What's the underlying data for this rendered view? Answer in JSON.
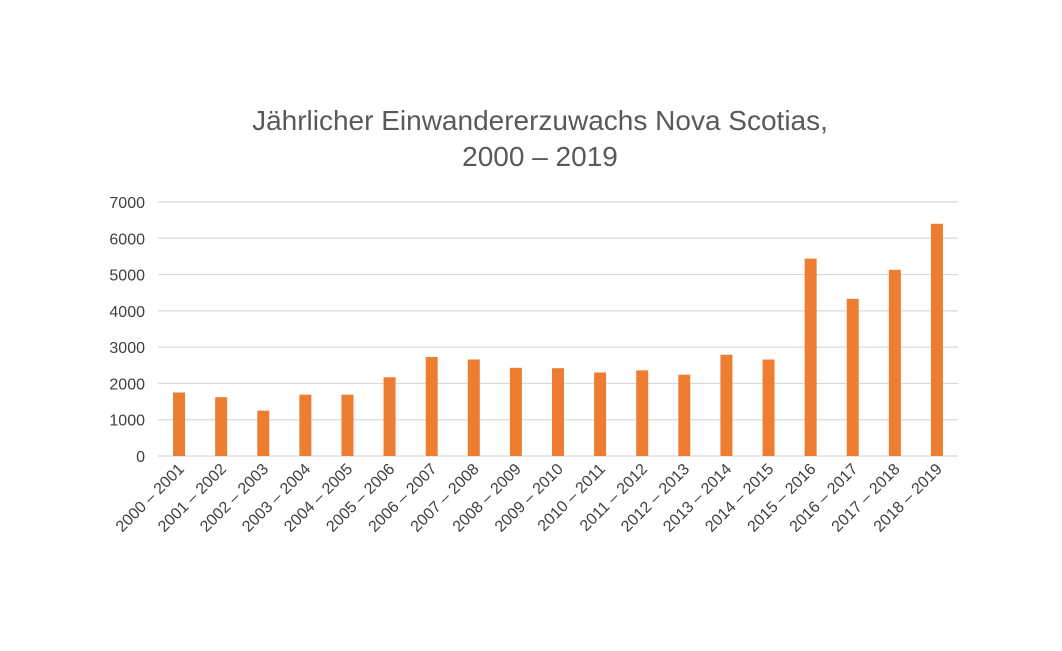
{
  "chart_data": {
    "type": "bar",
    "title_lines": [
      "Jährlicher Einwandererzuwachs Nova Scotias,",
      "2000 – 2019"
    ],
    "xlabel": "",
    "ylabel": "",
    "ylim": [
      0,
      7000
    ],
    "yticks": [
      0,
      1000,
      2000,
      3000,
      4000,
      5000,
      6000,
      7000
    ],
    "grid": true,
    "legend": "none",
    "bar_color": "#ed7d31",
    "categories": [
      "2000 – 2001",
      "2001 – 2002",
      "2002 – 2003",
      "2003 – 2004",
      "2004 – 2005",
      "2005 – 2006",
      "2006 – 2007",
      "2007 – 2008",
      "2008 – 2009",
      "2009 – 2010",
      "2010 – 2011",
      "2011 – 2012",
      "2012 – 2013",
      "2013 – 2014",
      "2014 – 2015",
      "2015 – 2016",
      "2016 – 2017",
      "2017 – 2018",
      "2018 – 2019"
    ],
    "values": [
      1750,
      1620,
      1250,
      1690,
      1690,
      2170,
      2730,
      2660,
      2430,
      2420,
      2300,
      2360,
      2240,
      2790,
      2660,
      5440,
      4330,
      5130,
      6400
    ]
  }
}
